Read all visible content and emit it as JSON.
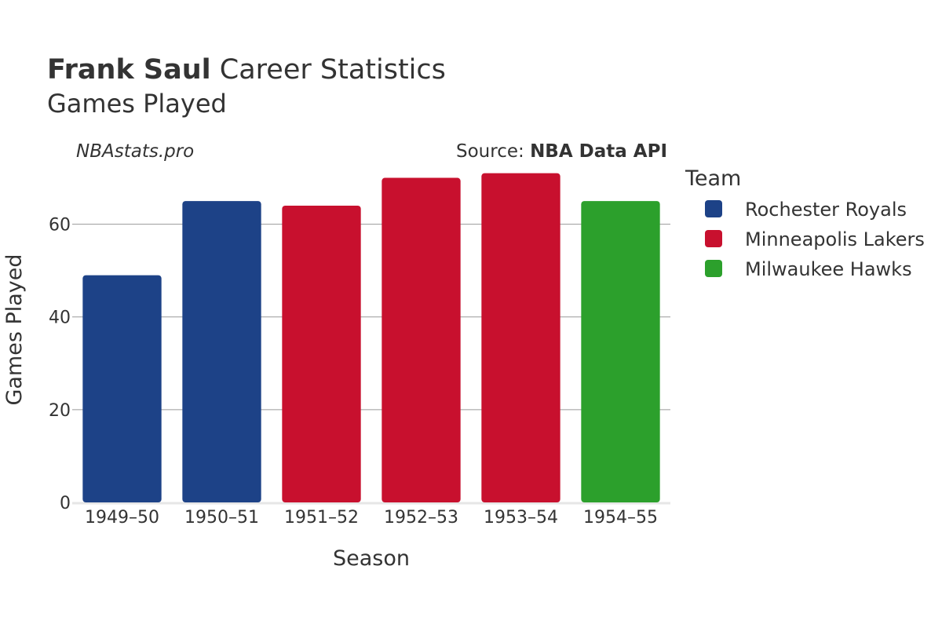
{
  "header": {
    "title_bold": "Frank Saul",
    "title_rest": " Career Statistics",
    "subtitle": "Games Played",
    "watermark": "NBAstats.pro",
    "source_prefix": "Source: ",
    "source_name": "NBA Data API"
  },
  "legend": {
    "title": "Team",
    "placement": "right",
    "items": [
      {
        "label": "Rochester Royals",
        "color": "#1d4287"
      },
      {
        "label": "Minneapolis Lakers",
        "color": "#c8102e"
      },
      {
        "label": "Milwaukee Hawks",
        "color": "#2ca02c"
      }
    ]
  },
  "chart_data": {
    "type": "bar",
    "categories": [
      "1949–50",
      "1950–51",
      "1951–52",
      "1952–53",
      "1953–54",
      "1954–55"
    ],
    "values": [
      49,
      65,
      64,
      70,
      71,
      65
    ],
    "teams": [
      "Rochester Royals",
      "Rochester Royals",
      "Minneapolis Lakers",
      "Minneapolis Lakers",
      "Minneapolis Lakers",
      "Milwaukee Hawks"
    ],
    "colors": [
      "#1d4287",
      "#1d4287",
      "#c8102e",
      "#c8102e",
      "#c8102e",
      "#2ca02c"
    ],
    "xlabel": "Season",
    "ylabel": "Games Played",
    "ylim": [
      0,
      75
    ],
    "yticks": [
      0,
      20,
      40,
      60
    ],
    "grid": true
  }
}
